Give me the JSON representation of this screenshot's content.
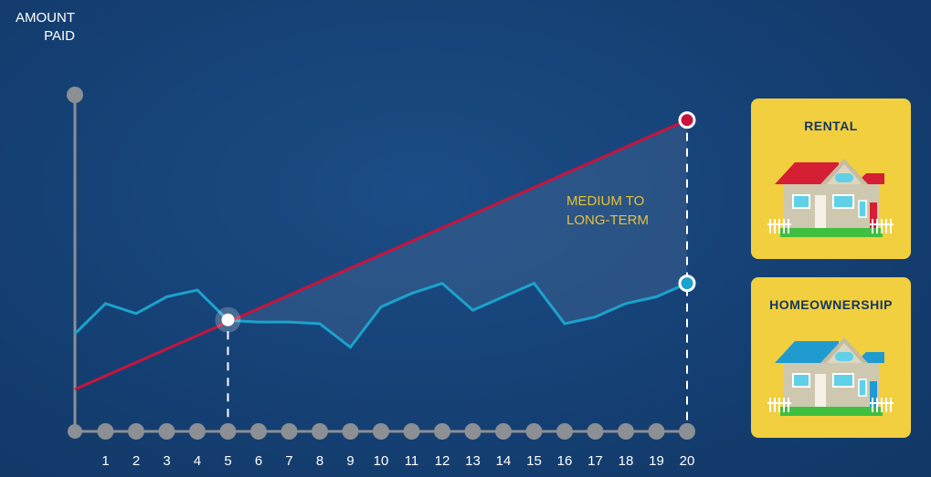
{
  "ylabel": [
    "AMOUNT",
    "PAID"
  ],
  "annotation": [
    "MEDIUM TO",
    "LONG-TERM"
  ],
  "colors": {
    "rental": "#c8143c",
    "homeownership": "#1aa3cc",
    "annotation": "#e5c239",
    "card": "#f2cf3f",
    "card_text": "#15365f"
  },
  "legend": {
    "rental": {
      "label": "RENTAL",
      "icon": "house-red-roof-icon"
    },
    "homeownership": {
      "label": "HOMEOWNERSHIP",
      "icon": "house-blue-roof-icon"
    }
  },
  "chart_data": {
    "type": "line",
    "x": [
      0,
      1,
      2,
      3,
      4,
      5,
      6,
      7,
      8,
      9,
      10,
      11,
      12,
      13,
      14,
      15,
      16,
      17,
      18,
      19,
      20
    ],
    "tick_labels": [
      "1",
      "2",
      "3",
      "4",
      "5",
      "6",
      "7",
      "8",
      "9",
      "10",
      "11",
      "12",
      "13",
      "14",
      "15",
      "16",
      "17",
      "18",
      "19",
      "20"
    ],
    "ylabel": "AMOUNT PAID",
    "ylim": [
      0,
      100
    ],
    "yticks_shown": false,
    "series": [
      {
        "name": "RENTAL",
        "color": "#c8143c",
        "values": [
          12.5,
          16.5,
          20.5,
          24.5,
          28.5,
          32.5,
          36.5,
          40.5,
          44.5,
          48.5,
          52.5,
          56.5,
          60.5,
          64.5,
          68.5,
          72.5,
          76.5,
          80.5,
          84.5,
          88.5,
          92.5
        ]
      },
      {
        "name": "HOMEOWNERSHIP",
        "color": "#1aa3cc",
        "values": [
          29,
          38,
          35,
          40,
          42,
          33,
          32.5,
          32.5,
          32,
          25,
          37,
          41,
          44,
          36,
          40,
          44,
          32,
          34,
          38,
          40,
          44
        ]
      }
    ],
    "highlight_x": [
      5,
      20
    ],
    "shaded_region": {
      "from_x": 5,
      "to_x": 20
    },
    "annotation": "MEDIUM TO LONG-TERM",
    "grid": false
  }
}
